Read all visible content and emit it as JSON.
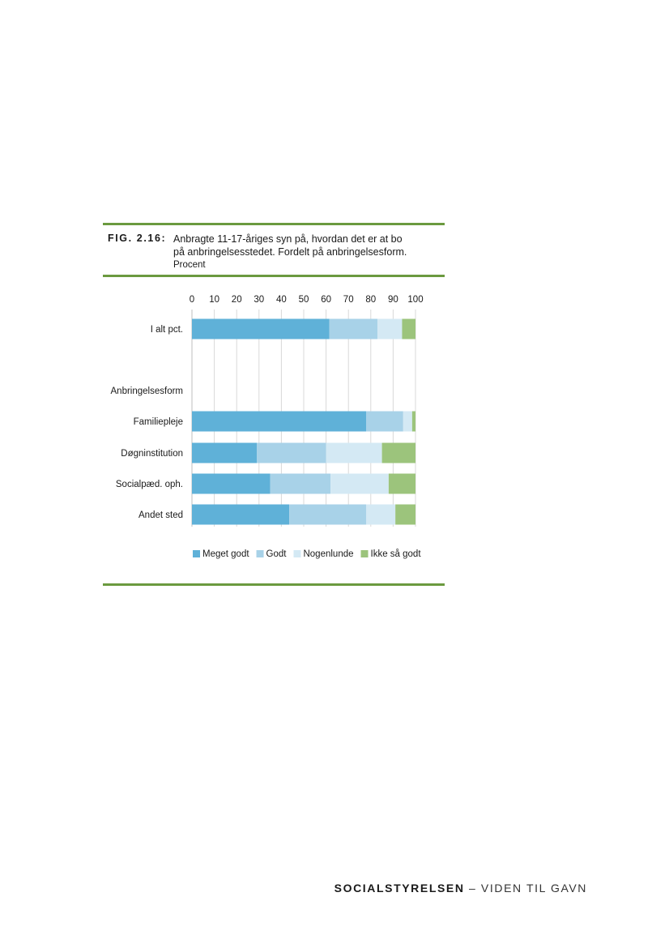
{
  "figure": {
    "label": "FIG. 2.16:",
    "title_line1": "Anbragte 11-17-åriges syn på, hvordan det er at bo",
    "title_line2": "på anbringelsesstedet. Fordelt på anbringelsesform.",
    "subtitle": "Procent"
  },
  "chart_data": {
    "type": "bar",
    "orientation": "horizontal",
    "stacked": true,
    "xlim": [
      0,
      100
    ],
    "xticks": [
      0,
      10,
      20,
      30,
      40,
      50,
      60,
      70,
      80,
      90,
      100
    ],
    "grid": true,
    "legend_position": "bottom",
    "categories": [
      "I alt pct.",
      "Anbringelsesform",
      "Familiepleje",
      "Døgninstitution",
      "Socialpæd. oph.",
      "Andet sted"
    ],
    "series": [
      {
        "name": "Meget godt",
        "color": "#5fb1d8",
        "values": [
          61.5,
          null,
          78,
          29,
          35,
          43.5
        ]
      },
      {
        "name": "Godt",
        "color": "#a8d2e8",
        "values": [
          21.5,
          null,
          16.5,
          31,
          27,
          34.5
        ]
      },
      {
        "name": "Nogenlunde",
        "color": "#d4e9f4",
        "values": [
          11,
          null,
          4,
          25,
          26,
          13
        ]
      },
      {
        "name": "Ikke så godt",
        "color": "#9cc47c",
        "values": [
          6,
          null,
          1.5,
          15,
          12,
          9
        ]
      }
    ]
  },
  "footer": {
    "brand": "SOCIALSTYRELSEN",
    "tagline": " – VIDEN TIL GAVN"
  }
}
